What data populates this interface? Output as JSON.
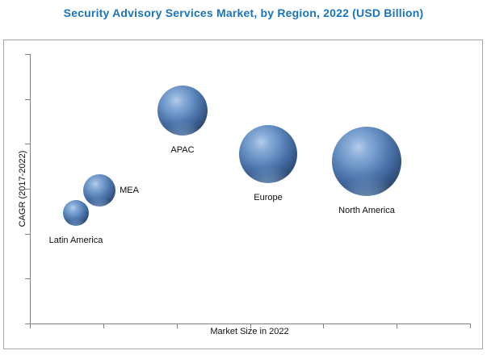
{
  "page": {
    "title": "Security Advisory Services Market, by Region, 2022 (USD Billion)",
    "title_color": "#1b75bc"
  },
  "axes": {
    "y_label": "CAGR (2017-2022)",
    "x_label": "Market Size in 2022",
    "axis_color": "#808080",
    "x_tick_count": 7,
    "y_tick_count": 7
  },
  "chart_data": {
    "type": "bubble",
    "title": "Security Advisory Services Market, by Region, 2022 (USD Billion)",
    "xlabel": "Market Size in 2022",
    "ylabel": "CAGR (2017-2022)",
    "x_axis_numeric_labels": false,
    "y_axis_numeric_labels": false,
    "axis_note": "Axes have unlabeled tick marks only; values below are relative positions (0-1) read from pixels",
    "points": [
      {
        "label": "Latin America",
        "x_rel": 0.105,
        "y_rel": 0.41,
        "radius_px": 16,
        "label_pos": "below",
        "z": 2
      },
      {
        "label": "MEA",
        "x_rel": 0.158,
        "y_rel": 0.494,
        "radius_px": 20,
        "label_pos": "right",
        "z": 1
      },
      {
        "label": "APAC",
        "x_rel": 0.347,
        "y_rel": 0.79,
        "radius_px": 31,
        "label_pos": "below",
        "z": 3
      },
      {
        "label": "Europe",
        "x_rel": 0.541,
        "y_rel": 0.629,
        "radius_px": 36,
        "label_pos": "below",
        "z": 4
      },
      {
        "label": "North America",
        "x_rel": 0.765,
        "y_rel": 0.602,
        "radius_px": 43,
        "label_pos": "below",
        "z": 5
      }
    ]
  }
}
